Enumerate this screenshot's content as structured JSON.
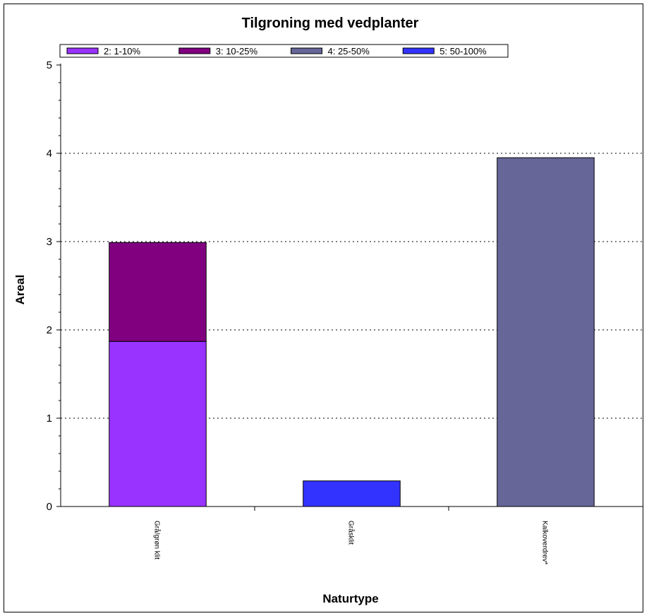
{
  "chart_data": {
    "type": "bar",
    "stacked": true,
    "title": "Tilgroning med vedplanter",
    "xlabel": "Naturtype",
    "ylabel": "Areal",
    "categories": [
      "Grå/grøn klit",
      "Gråsklit",
      "Kalkoverdrev*"
    ],
    "series": [
      {
        "name": "2: 1-10%",
        "color": "#9933ff",
        "values": [
          1.87,
          0,
          0
        ]
      },
      {
        "name": "3: 10-25%",
        "color": "#800080",
        "values": [
          1.12,
          0,
          0
        ]
      },
      {
        "name": "4: 25-50%",
        "color": "#666699",
        "values": [
          0,
          0,
          3.95
        ]
      },
      {
        "name": "5: 50-100%",
        "color": "#3333ff",
        "values": [
          0,
          0.29,
          0
        ]
      }
    ],
    "ylim": [
      0,
      5
    ],
    "yticks": [
      "0",
      "1",
      "2",
      "3",
      "4",
      "5"
    ],
    "grid": true,
    "legend_position": "top"
  }
}
